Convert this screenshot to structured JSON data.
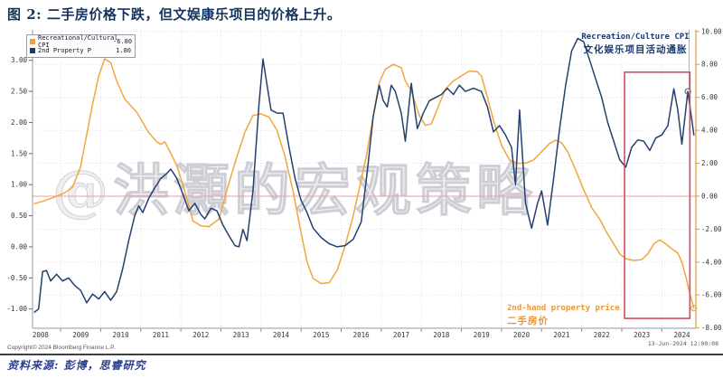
{
  "title": "图 2: 二手房价格下跌，但文娱康乐项目的价格上升。",
  "watermark": "@洪灝的宏观策略",
  "legend": {
    "items": [
      {
        "label": "Recreational/Cultural CPI",
        "value": "-6.80",
        "color": "#f0a232"
      },
      {
        "label": "2nd Property P",
        "value": "1.80",
        "color": "#1f3a68"
      }
    ]
  },
  "annotations": {
    "recreation_en": "Recreation/Culture CPI",
    "recreation_zh": "文化娱乐项目活动通胀",
    "property_en": "2nd-hand property price",
    "property_zh": "二手房价"
  },
  "footer": {
    "copyright": "Copyright© 2024 Bloomberg Finance L.P.",
    "timestamp": "13-Jun-2024 12:00:08",
    "source": "资料来源: 彭博，思睿研究"
  },
  "colors": {
    "orange_series": "#efa73e",
    "navy_series": "#24406e",
    "highlight_red": "#d54a60",
    "zero_line_red": "#ef9aa4",
    "right_axis_orange": "#e0992f"
  },
  "chart_data": {
    "type": "line",
    "title": "图 2: 二手房价格下跌，但文娱康乐项目的价格上升。",
    "grid": true,
    "legend_position": "top-left",
    "x_axis": {
      "label_years": [
        2008,
        2009,
        2010,
        2011,
        2012,
        2013,
        2014,
        2015,
        2016,
        2017,
        2018,
        2019,
        2020,
        2021,
        2022,
        2023,
        2024
      ],
      "range": [
        2007.8,
        2024.35
      ]
    },
    "left_axis": {
      "ticks": [
        3.0,
        2.5,
        2.0,
        1.5,
        1.0,
        0.5,
        0.0,
        -0.5,
        -1.0
      ],
      "range": [
        -1.31,
        3.49
      ],
      "series": "2nd Property P"
    },
    "right_axis": {
      "ticks": [
        10,
        8,
        6,
        4,
        2,
        0,
        -2,
        -4,
        -6,
        -8
      ],
      "range": [
        -8.02,
        10.1
      ],
      "series": "Recreational/Cultural CPI"
    },
    "zero_line": {
      "axis": "right",
      "value": 0
    },
    "crosshair": {
      "year": 2024.18
    },
    "highlight_box": {
      "x_range": [
        2022.57,
        2024.2
      ],
      "right_axis_range": [
        7.53,
        -7.42
      ]
    },
    "end_markers": [
      {
        "x": 2024.3,
        "value": -6.8,
        "axis": "right",
        "color": "#efa73e"
      },
      {
        "x": 2024.15,
        "value": 2.5,
        "axis": "left",
        "color": "#5a6780"
      }
    ],
    "series": [
      {
        "name": "Recreational/Cultural CPI",
        "axis": "right",
        "color": "#efa73e",
        "last_value": -6.8,
        "points": [
          [
            2007.85,
            -0.45
          ],
          [
            2008.0,
            -0.35
          ],
          [
            2008.3,
            -0.1
          ],
          [
            2008.6,
            0.2
          ],
          [
            2008.8,
            0.55
          ],
          [
            2009.0,
            1.8
          ],
          [
            2009.1,
            3.1
          ],
          [
            2009.3,
            5.6
          ],
          [
            2009.45,
            7.3
          ],
          [
            2009.6,
            8.35
          ],
          [
            2009.75,
            8.1
          ],
          [
            2009.9,
            7.0
          ],
          [
            2010.1,
            5.9
          ],
          [
            2010.4,
            5.1
          ],
          [
            2010.7,
            3.85
          ],
          [
            2010.9,
            3.3
          ],
          [
            2011.0,
            3.15
          ],
          [
            2011.1,
            3.3
          ],
          [
            2011.25,
            2.6
          ],
          [
            2011.4,
            1.85
          ],
          [
            2011.6,
            0.3
          ],
          [
            2011.8,
            -1.5
          ],
          [
            2012.0,
            -1.8
          ],
          [
            2012.2,
            -1.85
          ],
          [
            2012.45,
            -1.4
          ],
          [
            2012.7,
            0.8
          ],
          [
            2012.9,
            2.4
          ],
          [
            2013.1,
            3.9
          ],
          [
            2013.3,
            4.9
          ],
          [
            2013.5,
            5.0
          ],
          [
            2013.7,
            4.8
          ],
          [
            2013.9,
            4.0
          ],
          [
            2014.1,
            2.4
          ],
          [
            2014.3,
            0.3
          ],
          [
            2014.5,
            -2.2
          ],
          [
            2014.65,
            -4.0
          ],
          [
            2014.8,
            -5.0
          ],
          [
            2015.0,
            -5.3
          ],
          [
            2015.2,
            -5.25
          ],
          [
            2015.4,
            -4.5
          ],
          [
            2015.6,
            -3.0
          ],
          [
            2015.8,
            -1.2
          ],
          [
            2016.0,
            1.0
          ],
          [
            2016.15,
            2.7
          ],
          [
            2016.3,
            4.9
          ],
          [
            2016.45,
            6.9
          ],
          [
            2016.6,
            7.7
          ],
          [
            2016.8,
            8.0
          ],
          [
            2017.0,
            7.8
          ],
          [
            2017.1,
            7.0
          ],
          [
            2017.25,
            6.4
          ],
          [
            2017.45,
            4.9
          ],
          [
            2017.6,
            4.3
          ],
          [
            2017.75,
            4.4
          ],
          [
            2017.9,
            5.3
          ],
          [
            2018.1,
            6.5
          ],
          [
            2018.3,
            7.0
          ],
          [
            2018.5,
            7.3
          ],
          [
            2018.7,
            7.6
          ],
          [
            2018.9,
            7.55
          ],
          [
            2019.0,
            7.3
          ],
          [
            2019.15,
            6.0
          ],
          [
            2019.3,
            4.6
          ],
          [
            2019.5,
            3.1
          ],
          [
            2019.7,
            2.2
          ],
          [
            2019.9,
            2.0
          ],
          [
            2020.1,
            2.0
          ],
          [
            2020.3,
            2.2
          ],
          [
            2020.5,
            2.7
          ],
          [
            2020.7,
            3.2
          ],
          [
            2020.85,
            3.4
          ],
          [
            2021.0,
            3.25
          ],
          [
            2021.15,
            2.7
          ],
          [
            2021.35,
            1.6
          ],
          [
            2021.55,
            0.4
          ],
          [
            2021.75,
            -0.7
          ],
          [
            2021.95,
            -1.4
          ],
          [
            2022.1,
            -2.1
          ],
          [
            2022.3,
            -2.9
          ],
          [
            2022.45,
            -3.5
          ],
          [
            2022.6,
            -3.8
          ],
          [
            2022.8,
            -3.9
          ],
          [
            2023.0,
            -3.85
          ],
          [
            2023.15,
            -3.5
          ],
          [
            2023.3,
            -2.9
          ],
          [
            2023.45,
            -2.65
          ],
          [
            2023.6,
            -2.9
          ],
          [
            2023.75,
            -3.2
          ],
          [
            2023.9,
            -3.45
          ],
          [
            2024.0,
            -4.0
          ],
          [
            2024.1,
            -4.9
          ],
          [
            2024.2,
            -5.9
          ],
          [
            2024.3,
            -6.8
          ]
        ]
      },
      {
        "name": "2nd Property P",
        "axis": "left",
        "color": "#24406e",
        "last_value": 1.8,
        "points": [
          [
            2007.85,
            -1.05
          ],
          [
            2007.95,
            -1.0
          ],
          [
            2008.05,
            -0.4
          ],
          [
            2008.15,
            -0.38
          ],
          [
            2008.25,
            -0.55
          ],
          [
            2008.4,
            -0.44
          ],
          [
            2008.55,
            -0.55
          ],
          [
            2008.7,
            -0.5
          ],
          [
            2008.85,
            -0.62
          ],
          [
            2009.0,
            -0.7
          ],
          [
            2009.15,
            -0.9
          ],
          [
            2009.3,
            -0.76
          ],
          [
            2009.45,
            -0.84
          ],
          [
            2009.6,
            -0.72
          ],
          [
            2009.75,
            -0.86
          ],
          [
            2009.9,
            -0.72
          ],
          [
            2010.05,
            -0.35
          ],
          [
            2010.2,
            0.1
          ],
          [
            2010.35,
            0.5
          ],
          [
            2010.45,
            0.66
          ],
          [
            2010.55,
            0.55
          ],
          [
            2010.7,
            0.78
          ],
          [
            2010.85,
            0.95
          ],
          [
            2011.0,
            1.1
          ],
          [
            2011.15,
            1.18
          ],
          [
            2011.25,
            1.25
          ],
          [
            2011.4,
            1.1
          ],
          [
            2011.55,
            0.85
          ],
          [
            2011.7,
            0.58
          ],
          [
            2011.85,
            0.7
          ],
          [
            2012.0,
            0.52
          ],
          [
            2012.1,
            0.45
          ],
          [
            2012.25,
            0.62
          ],
          [
            2012.4,
            0.58
          ],
          [
            2012.55,
            0.35
          ],
          [
            2012.7,
            0.18
          ],
          [
            2012.85,
            0.02
          ],
          [
            2012.95,
            0.0
          ],
          [
            2013.05,
            0.28
          ],
          [
            2013.15,
            0.1
          ],
          [
            2013.3,
            0.9
          ],
          [
            2013.45,
            2.3
          ],
          [
            2013.55,
            3.02
          ],
          [
            2013.65,
            2.6
          ],
          [
            2013.75,
            2.2
          ],
          [
            2013.9,
            2.15
          ],
          [
            2014.05,
            2.15
          ],
          [
            2014.2,
            1.6
          ],
          [
            2014.35,
            1.1
          ],
          [
            2014.5,
            0.75
          ],
          [
            2014.65,
            0.55
          ],
          [
            2014.8,
            0.3
          ],
          [
            2015.0,
            0.15
          ],
          [
            2015.2,
            0.05
          ],
          [
            2015.4,
            0.0
          ],
          [
            2015.6,
            0.02
          ],
          [
            2015.8,
            0.12
          ],
          [
            2016.0,
            0.4
          ],
          [
            2016.15,
            1.2
          ],
          [
            2016.3,
            2.1
          ],
          [
            2016.45,
            2.6
          ],
          [
            2016.55,
            2.35
          ],
          [
            2016.65,
            2.25
          ],
          [
            2016.75,
            2.6
          ],
          [
            2016.85,
            2.5
          ],
          [
            2017.0,
            2.15
          ],
          [
            2017.1,
            1.7
          ],
          [
            2017.25,
            2.63
          ],
          [
            2017.4,
            1.9
          ],
          [
            2017.55,
            2.15
          ],
          [
            2017.7,
            2.35
          ],
          [
            2017.85,
            2.4
          ],
          [
            2018.0,
            2.45
          ],
          [
            2018.15,
            2.55
          ],
          [
            2018.3,
            2.45
          ],
          [
            2018.45,
            2.6
          ],
          [
            2018.6,
            2.5
          ],
          [
            2018.8,
            2.55
          ],
          [
            2019.0,
            2.5
          ],
          [
            2019.15,
            2.25
          ],
          [
            2019.3,
            1.85
          ],
          [
            2019.45,
            1.95
          ],
          [
            2019.6,
            1.8
          ],
          [
            2019.75,
            1.6
          ],
          [
            2019.85,
            1.0
          ],
          [
            2019.95,
            2.2
          ],
          [
            2020.1,
            0.7
          ],
          [
            2020.25,
            0.3
          ],
          [
            2020.4,
            0.7
          ],
          [
            2020.5,
            0.9
          ],
          [
            2020.65,
            0.35
          ],
          [
            2020.8,
            1.1
          ],
          [
            2020.95,
            1.9
          ],
          [
            2021.1,
            2.6
          ],
          [
            2021.25,
            3.15
          ],
          [
            2021.4,
            3.35
          ],
          [
            2021.55,
            3.3
          ],
          [
            2021.7,
            3.0
          ],
          [
            2021.85,
            2.7
          ],
          [
            2022.0,
            2.4
          ],
          [
            2022.15,
            2.0
          ],
          [
            2022.3,
            1.7
          ],
          [
            2022.45,
            1.4
          ],
          [
            2022.6,
            1.28
          ],
          [
            2022.75,
            1.6
          ],
          [
            2022.9,
            1.72
          ],
          [
            2023.05,
            1.7
          ],
          [
            2023.2,
            1.55
          ],
          [
            2023.35,
            1.75
          ],
          [
            2023.5,
            1.8
          ],
          [
            2023.65,
            1.95
          ],
          [
            2023.8,
            2.54
          ],
          [
            2023.9,
            2.2
          ],
          [
            2024.0,
            1.65
          ],
          [
            2024.15,
            2.5
          ],
          [
            2024.3,
            1.8
          ]
        ]
      }
    ]
  }
}
